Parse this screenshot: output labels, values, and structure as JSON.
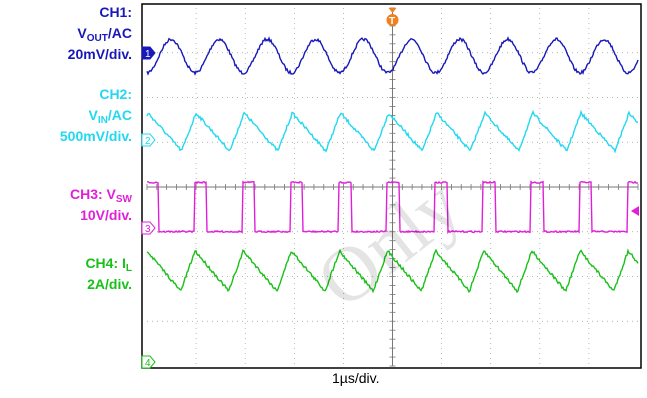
{
  "labels": {
    "ch1": {
      "line1": "CH1:",
      "v": "V",
      "sub": "OUT",
      "suffix": "/AC",
      "scale": "20mV/div.",
      "color": "#1818b8"
    },
    "ch2": {
      "line1": "CH2:",
      "v": "V",
      "sub": "IN",
      "suffix": "/AC",
      "scale": "500mV/div.",
      "color": "#22d8f0"
    },
    "ch3": {
      "pre": "CH3: V",
      "sub": "SW",
      "scale": "10V/div.",
      "color": "#e020d8"
    },
    "ch4": {
      "pre": "CH4: I",
      "sub": "L",
      "scale": "2A/div.",
      "color": "#18c018"
    }
  },
  "time_label": "1µs/div.",
  "watermark": "Only",
  "markers": {
    "ch1": "1",
    "ch2": "2",
    "ch3": "3",
    "ch4": "4",
    "trigger": "T"
  },
  "chart_data": {
    "type": "line",
    "x_unit": "µs",
    "x_range": [
      0,
      5
    ],
    "period_us": 0.98,
    "series": [
      {
        "name": "CH1",
        "shape": "sine",
        "scale": "20mV/div.",
        "color": "#1818b8",
        "peak_to_peak_div": 0.75
      },
      {
        "name": "CH2",
        "shape": "triangle",
        "scale": "500mV/div.",
        "color": "#22d8f0",
        "peak_to_peak_div": 0.85
      },
      {
        "name": "CH3",
        "shape": "square",
        "scale": "10V/div.",
        "color": "#e020d8",
        "peak_to_peak_div": 1.1,
        "duty": 0.26
      },
      {
        "name": "CH4",
        "shape": "triangle",
        "scale": "2A/div.",
        "color": "#18c018",
        "peak_to_peak_div": 0.9
      }
    ]
  }
}
